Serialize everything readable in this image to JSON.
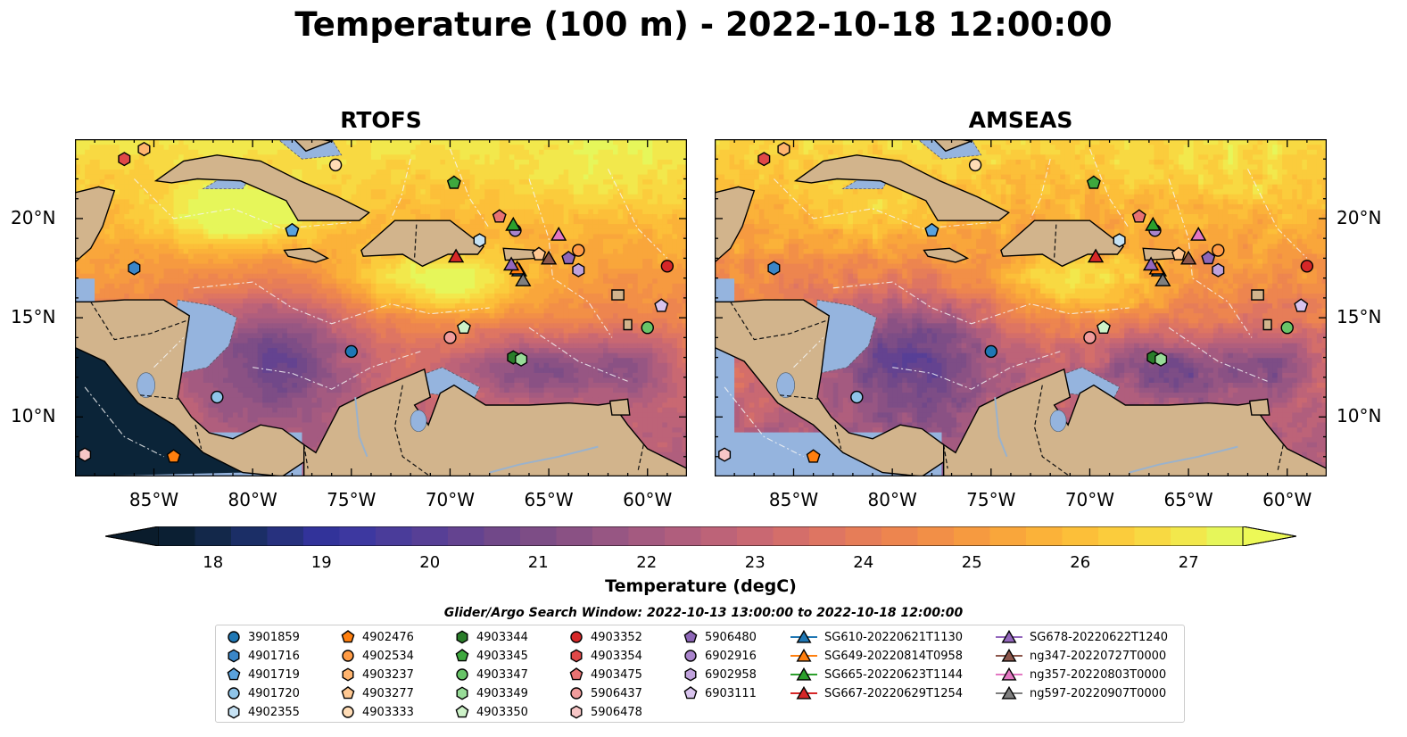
{
  "title": "Temperature (100 m) - 2022-10-18 12:00:00",
  "panels": [
    {
      "title": "RTOFS"
    },
    {
      "title": "AMSEAS"
    }
  ],
  "axes": {
    "lon_labels": [
      "85°W",
      "80°W",
      "75°W",
      "70°W",
      "65°W",
      "60°W"
    ],
    "lat_labels": [
      "20°N",
      "15°N",
      "10°N"
    ],
    "lon_range": [
      -89,
      -58
    ],
    "lat_range": [
      7,
      24
    ]
  },
  "colorbar": {
    "label": "Temperature (degC)",
    "ticks": [
      "18",
      "19",
      "20",
      "21",
      "22",
      "23",
      "24",
      "25",
      "26",
      "27"
    ],
    "min": 17.5,
    "max": 27.5,
    "colors": [
      "#0b1f33",
      "#13284a",
      "#1b2e66",
      "#27317e",
      "#32339a",
      "#3d38a0",
      "#4a3c9a",
      "#573f96",
      "#644390",
      "#714889",
      "#7d4d86",
      "#8a5184",
      "#975683",
      "#a45a80",
      "#b05e7d",
      "#bd6378",
      "#c96872",
      "#d46e6a",
      "#de7562",
      "#e67d58",
      "#ed854f",
      "#f28f47",
      "#f69a40",
      "#f9a63b",
      "#fbb239",
      "#fcbf39",
      "#fbcc3c",
      "#f8d942",
      "#f2e84c",
      "#e6f65a"
    ]
  },
  "colors": {
    "ocean": "#95b4de",
    "land": "#d2b48c",
    "deep_pacific": "#0b2438"
  },
  "search_window": "Glider/Argo Search Window: 2022-10-13 13:00:00 to 2022-10-18 12:00:00",
  "legend": [
    [
      {
        "label": "3901859",
        "marker": "circle",
        "color": "#1f77b4"
      },
      {
        "label": "4901716",
        "marker": "hexagon",
        "color": "#3a86c8"
      },
      {
        "label": "4901719",
        "marker": "pentagon",
        "color": "#5aa2dc"
      },
      {
        "label": "4901720",
        "marker": "circle",
        "color": "#8fc4e8"
      },
      {
        "label": "4902355",
        "marker": "hexagon",
        "color": "#c6e2f4"
      }
    ],
    [
      {
        "label": "4902476",
        "marker": "pentagon",
        "color": "#ff7f0e"
      },
      {
        "label": "4902534",
        "marker": "circle",
        "color": "#ff9b45"
      },
      {
        "label": "4903237",
        "marker": "hexagon",
        "color": "#ffb46e"
      },
      {
        "label": "4903277",
        "marker": "pentagon",
        "color": "#ffc892"
      },
      {
        "label": "4903333",
        "marker": "circle",
        "color": "#ffdcb6"
      }
    ],
    [
      {
        "label": "4903344",
        "marker": "hexagon",
        "color": "#2a7d2a"
      },
      {
        "label": "4903345",
        "marker": "pentagon",
        "color": "#3ea83e"
      },
      {
        "label": "4903347",
        "marker": "circle",
        "color": "#68c468"
      },
      {
        "label": "4903349",
        "marker": "hexagon",
        "color": "#98dc98"
      },
      {
        "label": "4903350",
        "marker": "pentagon",
        "color": "#cdf2c8"
      }
    ],
    [
      {
        "label": "4903352",
        "marker": "circle",
        "color": "#d62728"
      },
      {
        "label": "4903354",
        "marker": "hexagon",
        "color": "#e04848"
      },
      {
        "label": "4903475",
        "marker": "pentagon",
        "color": "#e87272"
      },
      {
        "label": "5906437",
        "marker": "circle",
        "color": "#f09c9c"
      },
      {
        "label": "5906478",
        "marker": "hexagon",
        "color": "#f7c6c6"
      }
    ],
    [
      {
        "label": "5906480",
        "marker": "pentagon",
        "color": "#8e67b8"
      },
      {
        "label": "6902916",
        "marker": "circle",
        "color": "#a984cc"
      },
      {
        "label": "6902958",
        "marker": "hexagon",
        "color": "#c0a2dc"
      },
      {
        "label": "6903111",
        "marker": "pentagon",
        "color": "#d9c4ee"
      }
    ],
    [
      {
        "label": "SG610-20220621T1130",
        "marker": "triangle",
        "color": "#1f77b4"
      },
      {
        "label": "SG649-20220814T0958",
        "marker": "triangle",
        "color": "#ff7f0e"
      },
      {
        "label": "SG665-20220623T1144",
        "marker": "triangle",
        "color": "#2ca02c"
      },
      {
        "label": "SG667-20220629T1254",
        "marker": "triangle",
        "color": "#d62728"
      }
    ],
    [
      {
        "label": "SG678-20220622T1240",
        "marker": "triangle",
        "color": "#9467bd"
      },
      {
        "label": "ng347-20220727T0000",
        "marker": "triangle",
        "color": "#8c564b"
      },
      {
        "label": "ng357-20220803T0000",
        "marker": "triangle",
        "color": "#e377c2"
      },
      {
        "label": "ng597-20220907T0000",
        "marker": "triangle",
        "color": "#7f7f7f"
      }
    ]
  ],
  "markers": [
    {
      "id": "3901859",
      "marker": "circle",
      "color": "#1f77b4",
      "lon": -75.0,
      "lat": 13.3
    },
    {
      "id": "4901716",
      "marker": "hexagon",
      "color": "#3a86c8",
      "lon": -86.0,
      "lat": 17.5
    },
    {
      "id": "4901719",
      "marker": "pentagon",
      "color": "#5aa2dc",
      "lon": -78.0,
      "lat": 19.4
    },
    {
      "id": "4901720",
      "marker": "circle",
      "color": "#8fc4e8",
      "lon": -81.8,
      "lat": 11.0
    },
    {
      "id": "4902355",
      "marker": "hexagon",
      "color": "#c6e2f4",
      "lon": -68.5,
      "lat": 18.9
    },
    {
      "id": "4902476",
      "marker": "pentagon",
      "color": "#ff7f0e",
      "lon": -84.0,
      "lat": 8.0
    },
    {
      "id": "4902534",
      "marker": "circle",
      "color": "#ff9b45",
      "lon": -63.5,
      "lat": 18.4
    },
    {
      "id": "4903237",
      "marker": "hexagon",
      "color": "#ffb46e",
      "lon": -85.5,
      "lat": 23.5
    },
    {
      "id": "4903277",
      "marker": "pentagon",
      "color": "#ffc892",
      "lon": -65.5,
      "lat": 18.2
    },
    {
      "id": "4903333",
      "marker": "circle",
      "color": "#ffdcb6",
      "lon": -75.8,
      "lat": 22.7
    },
    {
      "id": "4903344",
      "marker": "hexagon",
      "color": "#2a7d2a",
      "lon": -66.8,
      "lat": 13.0
    },
    {
      "id": "4903345",
      "marker": "pentagon",
      "color": "#3ea83e",
      "lon": -69.8,
      "lat": 21.8
    },
    {
      "id": "4903347",
      "marker": "circle",
      "color": "#68c468",
      "lon": -60.0,
      "lat": 14.5
    },
    {
      "id": "4903349",
      "marker": "hexagon",
      "color": "#98dc98",
      "lon": -66.4,
      "lat": 12.9
    },
    {
      "id": "4903350",
      "marker": "pentagon",
      "color": "#cdf2c8",
      "lon": -69.3,
      "lat": 14.5
    },
    {
      "id": "4903352",
      "marker": "circle",
      "color": "#d62728",
      "lon": -59.0,
      "lat": 17.6
    },
    {
      "id": "4903354",
      "marker": "hexagon",
      "color": "#e04848",
      "lon": -86.5,
      "lat": 23.0
    },
    {
      "id": "4903475",
      "marker": "pentagon",
      "color": "#e87272",
      "lon": -67.5,
      "lat": 20.1
    },
    {
      "id": "5906437",
      "marker": "circle",
      "color": "#f09c9c",
      "lon": -70.0,
      "lat": 14.0
    },
    {
      "id": "5906478",
      "marker": "hexagon",
      "color": "#f7c6c6",
      "lon": -88.5,
      "lat": 8.1
    },
    {
      "id": "5906480",
      "marker": "pentagon",
      "color": "#8e67b8",
      "lon": -64.0,
      "lat": 18.0
    },
    {
      "id": "6902916",
      "marker": "circle",
      "color": "#a984cc",
      "lon": -66.7,
      "lat": 19.4
    },
    {
      "id": "6902958",
      "marker": "hexagon",
      "color": "#c0a2dc",
      "lon": -63.5,
      "lat": 17.4
    },
    {
      "id": "6903111",
      "marker": "pentagon",
      "color": "#d9c4ee",
      "lon": -59.3,
      "lat": 15.6
    },
    {
      "id": "SG610-20220621T1130",
      "marker": "triangle",
      "color": "#1f77b4",
      "lon": -66.5,
      "lat": 17.4
    },
    {
      "id": "SG649-20220814T0958",
      "marker": "triangle",
      "color": "#ff7f0e",
      "lon": -66.6,
      "lat": 17.5
    },
    {
      "id": "SG665-20220623T1144",
      "marker": "triangle",
      "color": "#2ca02c",
      "lon": -66.8,
      "lat": 19.7
    },
    {
      "id": "SG667-20220629T1254",
      "marker": "triangle",
      "color": "#d62728",
      "lon": -69.7,
      "lat": 18.1
    },
    {
      "id": "SG678-20220622T1240",
      "marker": "triangle",
      "color": "#9467bd",
      "lon": -66.9,
      "lat": 17.7
    },
    {
      "id": "ng347-20220727T0000",
      "marker": "triangle",
      "color": "#8c564b",
      "lon": -65.0,
      "lat": 18.0
    },
    {
      "id": "ng357-20220803T0000",
      "marker": "triangle",
      "color": "#e377c2",
      "lon": -64.5,
      "lat": 19.2
    },
    {
      "id": "ng597-20220907T0000",
      "marker": "triangle",
      "color": "#7f7f7f",
      "lon": -66.3,
      "lat": 16.9
    }
  ]
}
